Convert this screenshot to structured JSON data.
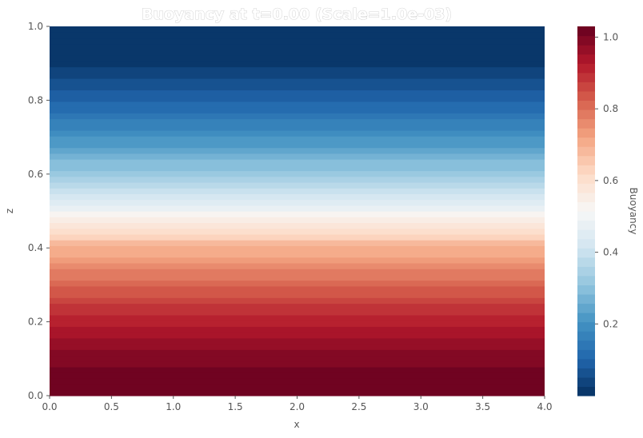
{
  "chart_data": {
    "type": "heatmap",
    "title": "Buoyancy at t=0.00 (Scale=1.0e-03)",
    "xlabel": "x",
    "ylabel": "z",
    "xlim": [
      0.0,
      4.0
    ],
    "ylim": [
      0.0,
      1.0
    ],
    "x_ticks": [
      "0.0",
      "0.5",
      "1.0",
      "1.5",
      "2.0",
      "2.5",
      "3.0",
      "3.5",
      "4.0"
    ],
    "y_ticks": [
      "0.0",
      "0.2",
      "0.4",
      "0.6",
      "0.8",
      "1.0"
    ],
    "colorbar": {
      "label": "Buoyancy",
      "range": [
        0.0,
        1.03
      ],
      "ticks": [
        "0.2",
        "0.4",
        "0.6",
        "0.8",
        "1.0"
      ],
      "colormap": "RdBu_r"
    },
    "profile": {
      "description_of_values": "buoyancy constant along x, varying with z",
      "z": [
        0.0,
        0.1,
        0.2,
        0.3,
        0.4,
        0.5,
        0.6,
        0.7,
        0.8,
        0.9,
        1.0
      ],
      "buoyancy": [
        1.03,
        1.0,
        0.92,
        0.82,
        0.7,
        0.5,
        0.33,
        0.2,
        0.1,
        0.02,
        0.0
      ]
    }
  },
  "colors": {
    "background": "#ffffff",
    "axis_text": "#555555",
    "colormap_stops": [
      "#053061",
      "#2166ac",
      "#4393c3",
      "#92c5de",
      "#d1e5f0",
      "#f7f7f7",
      "#fddbc7",
      "#f4a582",
      "#d6604d",
      "#b2182b",
      "#67001f"
    ]
  }
}
